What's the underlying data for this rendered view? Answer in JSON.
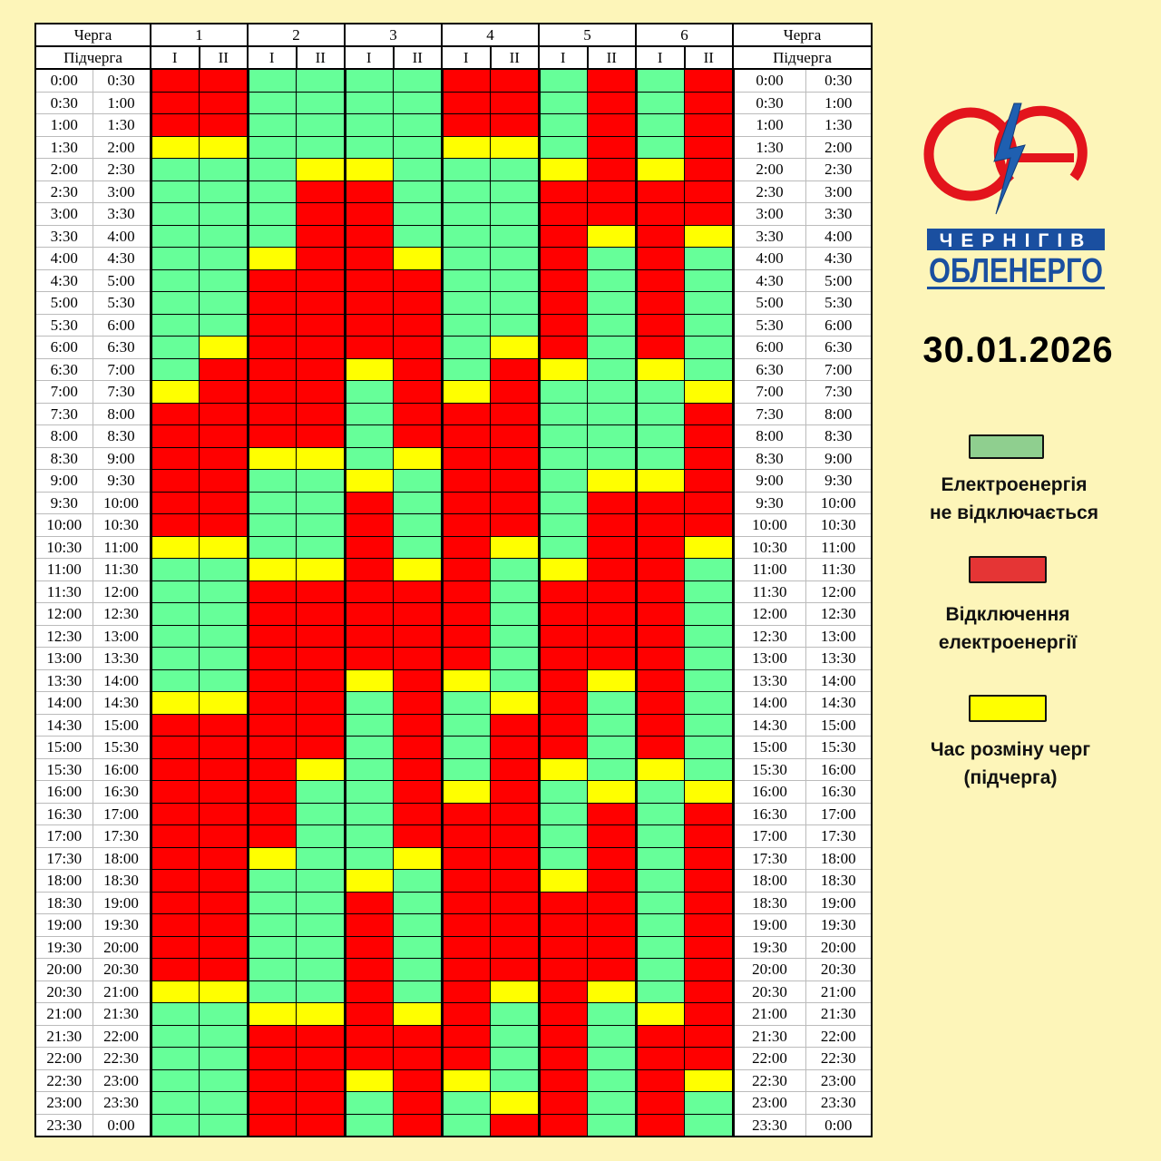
{
  "header": {
    "queue_label": "Черга",
    "subqueue_label": "Підчерга",
    "queues": [
      "1",
      "2",
      "3",
      "4",
      "5",
      "6"
    ],
    "subqueues": [
      "I",
      "II"
    ]
  },
  "status_colors": {
    "G": "#66ff99",
    "R": "#ff0000",
    "Y": "#ffff00"
  },
  "status_meaning": {
    "G": "on",
    "R": "outage",
    "Y": "changeover"
  },
  "schedule": [
    {
      "from": "0:00",
      "to": "0:30",
      "cells": "RRGGGGRRGRGR"
    },
    {
      "from": "0:30",
      "to": "1:00",
      "cells": "RRGGGGRRGRGR"
    },
    {
      "from": "1:00",
      "to": "1:30",
      "cells": "RRGGGGRRGRGR"
    },
    {
      "from": "1:30",
      "to": "2:00",
      "cells": "YYGGGGYYGRGR"
    },
    {
      "from": "2:00",
      "to": "2:30",
      "cells": "GGGYYGGGYRYR"
    },
    {
      "from": "2:30",
      "to": "3:00",
      "cells": "GGGRRGGGRRRR"
    },
    {
      "from": "3:00",
      "to": "3:30",
      "cells": "GGGRRGGGRRRR"
    },
    {
      "from": "3:30",
      "to": "4:00",
      "cells": "GGGRRGGGRYRY"
    },
    {
      "from": "4:00",
      "to": "4:30",
      "cells": "GGYRRYGGRGRG"
    },
    {
      "from": "4:30",
      "to": "5:00",
      "cells": "GGRRRRGGRGRG"
    },
    {
      "from": "5:00",
      "to": "5:30",
      "cells": "GGRRRRGGRGRG"
    },
    {
      "from": "5:30",
      "to": "6:00",
      "cells": "GGRRRRGGRGRG"
    },
    {
      "from": "6:00",
      "to": "6:30",
      "cells": "GYRRRRGYRGRG"
    },
    {
      "from": "6:30",
      "to": "7:00",
      "cells": "GRRRYRGRYGYG"
    },
    {
      "from": "7:00",
      "to": "7:30",
      "cells": "YRRRGRYRGGGY"
    },
    {
      "from": "7:30",
      "to": "8:00",
      "cells": "RRRRGRRRGGGR"
    },
    {
      "from": "8:00",
      "to": "8:30",
      "cells": "RRRRGRRRGGGR"
    },
    {
      "from": "8:30",
      "to": "9:00",
      "cells": "RRYYGYRRGGGR"
    },
    {
      "from": "9:00",
      "to": "9:30",
      "cells": "RRGGYGRRGYYR"
    },
    {
      "from": "9:30",
      "to": "10:00",
      "cells": "RRGGRGRRGRRR"
    },
    {
      "from": "10:00",
      "to": "10:30",
      "cells": "RRGGRGRRGRRR"
    },
    {
      "from": "10:30",
      "to": "11:00",
      "cells": "YYGGRGRYGRRY"
    },
    {
      "from": "11:00",
      "to": "11:30",
      "cells": "GGYYRYRGYRRG"
    },
    {
      "from": "11:30",
      "to": "12:00",
      "cells": "GGRRRRRGRRRG"
    },
    {
      "from": "12:00",
      "to": "12:30",
      "cells": "GGRRRRRGRRRG"
    },
    {
      "from": "12:30",
      "to": "13:00",
      "cells": "GGRRRRRGRRRG"
    },
    {
      "from": "13:00",
      "to": "13:30",
      "cells": "GGRRRRRGRRRG"
    },
    {
      "from": "13:30",
      "to": "14:00",
      "cells": "GGRRYRYGRYRG"
    },
    {
      "from": "14:00",
      "to": "14:30",
      "cells": "YYRRGRGYRGRG"
    },
    {
      "from": "14:30",
      "to": "15:00",
      "cells": "RRRRGRGRRGRG"
    },
    {
      "from": "15:00",
      "to": "15:30",
      "cells": "RRRRGRGRRGRG"
    },
    {
      "from": "15:30",
      "to": "16:00",
      "cells": "RRRYGRGRYGYG"
    },
    {
      "from": "16:00",
      "to": "16:30",
      "cells": "RRRGGRYRGYGY"
    },
    {
      "from": "16:30",
      "to": "17:00",
      "cells": "RRRGGRRRGRGR"
    },
    {
      "from": "17:00",
      "to": "17:30",
      "cells": "RRRGGRRRGRGR"
    },
    {
      "from": "17:30",
      "to": "18:00",
      "cells": "RRYGGYRRGRGR"
    },
    {
      "from": "18:00",
      "to": "18:30",
      "cells": "RRGGYGRRYRGR"
    },
    {
      "from": "18:30",
      "to": "19:00",
      "cells": "RRGGRGRRRRGR"
    },
    {
      "from": "19:00",
      "to": "19:30",
      "cells": "RRGGRGRRRRGR"
    },
    {
      "from": "19:30",
      "to": "20:00",
      "cells": "RRGGRGRRRRGR"
    },
    {
      "from": "20:00",
      "to": "20:30",
      "cells": "RRGGRGRRRRGR"
    },
    {
      "from": "20:30",
      "to": "21:00",
      "cells": "YYGGRGRYRYGR"
    },
    {
      "from": "21:00",
      "to": "21:30",
      "cells": "GGYYRYRGRGYR"
    },
    {
      "from": "21:30",
      "to": "22:00",
      "cells": "GGRRRRRGRGRR"
    },
    {
      "from": "22:00",
      "to": "22:30",
      "cells": "GGRRRRRGRGRR"
    },
    {
      "from": "22:30",
      "to": "23:00",
      "cells": "GGRRYRYGRGRY"
    },
    {
      "from": "23:00",
      "to": "23:30",
      "cells": "GGRRGRGYRGRG"
    },
    {
      "from": "23:30",
      "to": "0:00",
      "cells": "GGRRGRGRRGRG"
    }
  ],
  "logo": {
    "line1": "ЧЕРНІГІВ",
    "line2": "ОБЛЕНЕРГО"
  },
  "date": "30.01.2026",
  "legend": [
    {
      "color": "#8fcf8f",
      "line1": "Електроенергія",
      "line2": "не відключається"
    },
    {
      "color": "#e53535",
      "line1": "Відключення",
      "line2": "електроенергії"
    },
    {
      "color": "#ffff00",
      "line1": "Час розміну черг",
      "line2": "(підчерга)"
    }
  ]
}
